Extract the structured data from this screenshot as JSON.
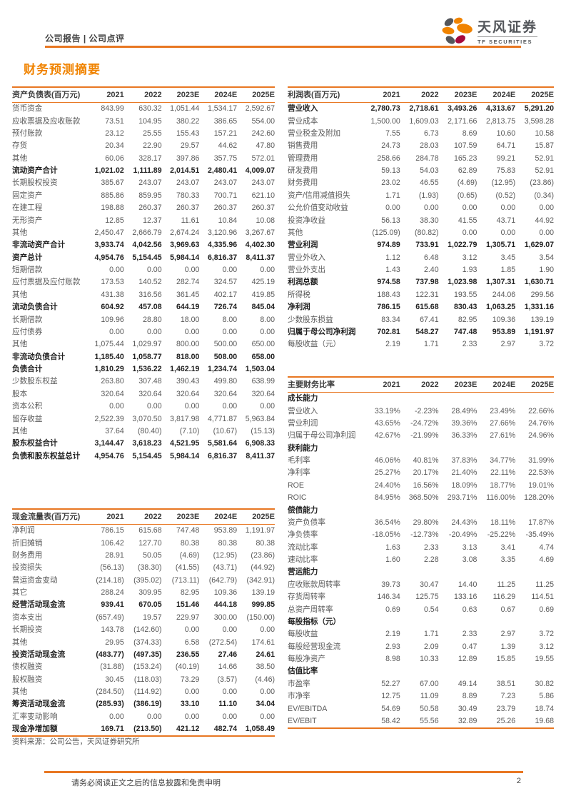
{
  "header": {
    "breadcrumb": "公司报告 | 公司点评",
    "logo": {
      "brand": "天风证券",
      "sub": "TF SECURITIES"
    },
    "accent_color": "#E87722",
    "logo_colors": {
      "orange": "#F08300",
      "gray": "#54565B",
      "crimson": "#A6093D"
    }
  },
  "page_title": "财务预测摘要",
  "columns": [
    "2021",
    "2022",
    "2023E",
    "2024E",
    "2025E"
  ],
  "tables": {
    "balance_sheet": {
      "title": "资产负债表(百万元)",
      "rows": [
        {
          "label": "货币资金",
          "values": [
            "843.99",
            "630.32",
            "1,051.44",
            "1,534.17",
            "2,592.67"
          ]
        },
        {
          "label": "应收票据及应收账款",
          "values": [
            "73.51",
            "104.95",
            "380.22",
            "386.65",
            "554.00"
          ]
        },
        {
          "label": "预付账款",
          "values": [
            "23.12",
            "25.55",
            "155.43",
            "157.21",
            "242.60"
          ]
        },
        {
          "label": "存货",
          "values": [
            "20.34",
            "22.90",
            "29.57",
            "44.62",
            "47.80"
          ]
        },
        {
          "label": "其他",
          "values": [
            "60.06",
            "328.17",
            "397.86",
            "357.75",
            "572.01"
          ]
        },
        {
          "label": "流动资产合计",
          "style": "bold",
          "values": [
            "1,021.02",
            "1,111.89",
            "2,014.51",
            "2,480.41",
            "4,009.07"
          ]
        },
        {
          "label": "长期股权投资",
          "values": [
            "385.67",
            "243.07",
            "243.07",
            "243.07",
            "243.07"
          ]
        },
        {
          "label": "固定资产",
          "values": [
            "885.86",
            "859.95",
            "780.33",
            "700.71",
            "621.10"
          ]
        },
        {
          "label": "在建工程",
          "values": [
            "198.88",
            "260.37",
            "260.37",
            "260.37",
            "260.37"
          ]
        },
        {
          "label": "无形资产",
          "values": [
            "12.85",
            "12.37",
            "11.61",
            "10.84",
            "10.08"
          ]
        },
        {
          "label": "其他",
          "values": [
            "2,450.47",
            "2,666.79",
            "2,674.24",
            "3,120.96",
            "3,267.67"
          ]
        },
        {
          "label": "非流动资产合计",
          "style": "bold",
          "values": [
            "3,933.74",
            "4,042.56",
            "3,969.63",
            "4,335.96",
            "4,402.30"
          ]
        },
        {
          "label": "资产总计",
          "style": "bold",
          "values": [
            "4,954.76",
            "5,154.45",
            "5,984.14",
            "6,816.37",
            "8,411.37"
          ]
        },
        {
          "label": "短期借款",
          "values": [
            "0.00",
            "0.00",
            "0.00",
            "0.00",
            "0.00"
          ]
        },
        {
          "label": "应付票据及应付账款",
          "values": [
            "173.53",
            "140.52",
            "282.74",
            "324.57",
            "425.19"
          ]
        },
        {
          "label": "其他",
          "values": [
            "431.38",
            "316.56",
            "361.45",
            "402.17",
            "419.85"
          ]
        },
        {
          "label": "流动负债合计",
          "style": "bold",
          "values": [
            "604.92",
            "457.08",
            "644.19",
            "726.74",
            "845.04"
          ]
        },
        {
          "label": "长期借款",
          "values": [
            "109.96",
            "28.80",
            "18.00",
            "8.00",
            "8.00"
          ]
        },
        {
          "label": "应付债券",
          "values": [
            "0.00",
            "0.00",
            "0.00",
            "0.00",
            "0.00"
          ]
        },
        {
          "label": "其他",
          "values": [
            "1,075.44",
            "1,029.97",
            "800.00",
            "500.00",
            "650.00"
          ]
        },
        {
          "label": "非流动负债合计",
          "style": "bold",
          "values": [
            "1,185.40",
            "1,058.77",
            "818.00",
            "508.00",
            "658.00"
          ]
        },
        {
          "label": "负债合计",
          "style": "bold",
          "values": [
            "1,810.29",
            "1,536.22",
            "1,462.19",
            "1,234.74",
            "1,503.04"
          ]
        },
        {
          "label": "少数股东权益",
          "values": [
            "263.80",
            "307.48",
            "390.43",
            "499.80",
            "638.99"
          ]
        },
        {
          "label": "股本",
          "values": [
            "320.64",
            "320.64",
            "320.64",
            "320.64",
            "320.64"
          ]
        },
        {
          "label": "资本公积",
          "values": [
            "0.00",
            "0.00",
            "0.00",
            "0.00",
            "0.00"
          ]
        },
        {
          "label": "留存收益",
          "values": [
            "2,522.39",
            "3,070.50",
            "3,817.98",
            "4,771.87",
            "5,963.84"
          ]
        },
        {
          "label": "其他",
          "values": [
            "37.64",
            "(80.40)",
            "(7.10)",
            "(10.67)",
            "(15.13)"
          ]
        },
        {
          "label": "股东权益合计",
          "style": "bold",
          "values": [
            "3,144.47",
            "3,618.23",
            "4,521.95",
            "5,581.64",
            "6,908.33"
          ]
        },
        {
          "label": "负债和股东权益总计",
          "style": "bold",
          "values": [
            "4,954.76",
            "5,154.45",
            "5,984.14",
            "6,816.37",
            "8,411.37"
          ]
        }
      ]
    },
    "income_statement": {
      "title": "利润表(百万元)",
      "rows": [
        {
          "label": "营业收入",
          "style": "bold",
          "values": [
            "2,780.73",
            "2,718.61",
            "3,493.26",
            "4,313.67",
            "5,291.20"
          ]
        },
        {
          "label": "营业成本",
          "values": [
            "1,500.00",
            "1,609.03",
            "2,171.66",
            "2,813.75",
            "3,598.28"
          ]
        },
        {
          "label": "营业税金及附加",
          "values": [
            "7.55",
            "6.73",
            "8.69",
            "10.60",
            "10.58"
          ]
        },
        {
          "label": "销售费用",
          "values": [
            "24.73",
            "28.03",
            "107.59",
            "64.71",
            "15.87"
          ]
        },
        {
          "label": "管理费用",
          "values": [
            "258.66",
            "284.78",
            "165.23",
            "99.21",
            "52.91"
          ]
        },
        {
          "label": "研发费用",
          "values": [
            "59.13",
            "54.03",
            "62.89",
            "75.83",
            "52.91"
          ]
        },
        {
          "label": "财务费用",
          "values": [
            "23.02",
            "46.55",
            "(4.69)",
            "(12.95)",
            "(23.86)"
          ]
        },
        {
          "label": "资产/信用减值损失",
          "values": [
            "1.71",
            "(1.93)",
            "(0.65)",
            "(0.52)",
            "(0.34)"
          ]
        },
        {
          "label": "公允价值变动收益",
          "values": [
            "0.00",
            "0.00",
            "0.00",
            "0.00",
            "0.00"
          ]
        },
        {
          "label": "投资净收益",
          "values": [
            "56.13",
            "38.30",
            "41.55",
            "43.71",
            "44.92"
          ]
        },
        {
          "label": "其他",
          "values": [
            "(125.09)",
            "(80.82)",
            "0.00",
            "0.00",
            "0.00"
          ]
        },
        {
          "label": "营业利润",
          "style": "bold",
          "values": [
            "974.89",
            "733.91",
            "1,022.79",
            "1,305.71",
            "1,629.07"
          ]
        },
        {
          "label": "营业外收入",
          "values": [
            "1.12",
            "6.48",
            "3.12",
            "3.45",
            "3.54"
          ]
        },
        {
          "label": "营业外支出",
          "values": [
            "1.43",
            "2.40",
            "1.93",
            "1.85",
            "1.90"
          ]
        },
        {
          "label": "利润总额",
          "style": "bold",
          "values": [
            "974.58",
            "737.98",
            "1,023.98",
            "1,307.31",
            "1,630.71"
          ]
        },
        {
          "label": "所得税",
          "values": [
            "188.43",
            "122.31",
            "193.55",
            "244.06",
            "299.56"
          ]
        },
        {
          "label": "净利润",
          "style": "bold",
          "values": [
            "786.15",
            "615.68",
            "830.43",
            "1,063.25",
            "1,331.16"
          ]
        },
        {
          "label": "少数股东损益",
          "values": [
            "83.34",
            "67.41",
            "82.95",
            "109.36",
            "139.19"
          ]
        },
        {
          "label": "归属于母公司净利润",
          "style": "bold",
          "values": [
            "702.81",
            "548.27",
            "747.48",
            "953.89",
            "1,191.97"
          ]
        },
        {
          "label": "每股收益（元）",
          "values": [
            "2.19",
            "1.71",
            "2.33",
            "2.97",
            "3.72"
          ]
        }
      ]
    },
    "ratios": {
      "title": "主要财务比率",
      "rows": [
        {
          "label": "成长能力",
          "style": "section",
          "values": [
            "",
            "",
            "",
            "",
            ""
          ]
        },
        {
          "label": "营业收入",
          "values": [
            "33.19%",
            "-2.23%",
            "28.49%",
            "23.49%",
            "22.66%"
          ]
        },
        {
          "label": "营业利润",
          "values": [
            "43.65%",
            "-24.72%",
            "39.36%",
            "27.66%",
            "24.76%"
          ]
        },
        {
          "label": "归属于母公司净利润",
          "values": [
            "42.67%",
            "-21.99%",
            "36.33%",
            "27.61%",
            "24.96%"
          ]
        },
        {
          "label": "获利能力",
          "style": "section",
          "values": [
            "",
            "",
            "",
            "",
            ""
          ]
        },
        {
          "label": "毛利率",
          "values": [
            "46.06%",
            "40.81%",
            "37.83%",
            "34.77%",
            "31.99%"
          ]
        },
        {
          "label": "净利率",
          "values": [
            "25.27%",
            "20.17%",
            "21.40%",
            "22.11%",
            "22.53%"
          ]
        },
        {
          "label": "ROE",
          "values": [
            "24.40%",
            "16.56%",
            "18.09%",
            "18.77%",
            "19.01%"
          ]
        },
        {
          "label": "ROIC",
          "values": [
            "84.95%",
            "368.50%",
            "293.71%",
            "116.00%",
            "128.20%"
          ]
        },
        {
          "label": "偿债能力",
          "style": "section",
          "values": [
            "",
            "",
            "",
            "",
            ""
          ]
        },
        {
          "label": "资产负债率",
          "values": [
            "36.54%",
            "29.80%",
            "24.43%",
            "18.11%",
            "17.87%"
          ]
        },
        {
          "label": "净负债率",
          "values": [
            "-18.05%",
            "-12.73%",
            "-20.49%",
            "-25.22%",
            "-35.49%"
          ]
        },
        {
          "label": "流动比率",
          "values": [
            "1.63",
            "2.33",
            "3.13",
            "3.41",
            "4.74"
          ]
        },
        {
          "label": "速动比率",
          "values": [
            "1.60",
            "2.28",
            "3.08",
            "3.35",
            "4.69"
          ]
        },
        {
          "label": "营运能力",
          "style": "section",
          "values": [
            "",
            "",
            "",
            "",
            ""
          ]
        },
        {
          "label": "应收账款周转率",
          "values": [
            "39.73",
            "30.47",
            "14.40",
            "11.25",
            "11.25"
          ]
        },
        {
          "label": "存货周转率",
          "values": [
            "146.34",
            "125.75",
            "133.16",
            "116.29",
            "114.51"
          ]
        },
        {
          "label": "总资产周转率",
          "values": [
            "0.69",
            "0.54",
            "0.63",
            "0.67",
            "0.69"
          ]
        },
        {
          "label": "每股指标（元）",
          "style": "section",
          "values": [
            "",
            "",
            "",
            "",
            ""
          ]
        },
        {
          "label": "每股收益",
          "values": [
            "2.19",
            "1.71",
            "2.33",
            "2.97",
            "3.72"
          ]
        },
        {
          "label": "每股经营现金流",
          "values": [
            "2.93",
            "2.09",
            "0.47",
            "1.39",
            "3.12"
          ]
        },
        {
          "label": "每股净资产",
          "values": [
            "8.98",
            "10.33",
            "12.89",
            "15.85",
            "19.55"
          ]
        },
        {
          "label": "估值比率",
          "style": "section",
          "values": [
            "",
            "",
            "",
            "",
            ""
          ]
        },
        {
          "label": "市盈率",
          "values": [
            "52.27",
            "67.00",
            "49.14",
            "38.51",
            "30.82"
          ]
        },
        {
          "label": "市净率",
          "values": [
            "12.75",
            "11.09",
            "8.89",
            "7.23",
            "5.86"
          ]
        },
        {
          "label": "EV/EBITDA",
          "values": [
            "54.69",
            "50.58",
            "30.49",
            "23.79",
            "18.74"
          ]
        },
        {
          "label": "EV/EBIT",
          "values": [
            "58.42",
            "55.56",
            "32.89",
            "25.26",
            "19.68"
          ]
        }
      ]
    },
    "cash_flow": {
      "title": "现金流量表(百万元)",
      "rows": [
        {
          "label": "净利润",
          "values": [
            "786.15",
            "615.68",
            "747.48",
            "953.89",
            "1,191.97"
          ]
        },
        {
          "label": "折旧摊销",
          "values": [
            "106.42",
            "127.70",
            "80.38",
            "80.38",
            "80.38"
          ]
        },
        {
          "label": "财务费用",
          "values": [
            "28.91",
            "50.05",
            "(4.69)",
            "(12.95)",
            "(23.86)"
          ]
        },
        {
          "label": "投资损失",
          "values": [
            "(56.13)",
            "(38.30)",
            "(41.55)",
            "(43.71)",
            "(44.92)"
          ]
        },
        {
          "label": "营运资金变动",
          "values": [
            "(214.18)",
            "(395.02)",
            "(713.11)",
            "(642.79)",
            "(342.91)"
          ]
        },
        {
          "label": "其它",
          "values": [
            "288.24",
            "309.95",
            "82.95",
            "109.36",
            "139.19"
          ]
        },
        {
          "label": "经营活动现金流",
          "style": "bold",
          "values": [
            "939.41",
            "670.05",
            "151.46",
            "444.18",
            "999.85"
          ]
        },
        {
          "label": "资本支出",
          "values": [
            "(657.49)",
            "19.57",
            "229.97",
            "300.00",
            "(150.00)"
          ]
        },
        {
          "label": "长期投资",
          "values": [
            "143.78",
            "(142.60)",
            "0.00",
            "0.00",
            "0.00"
          ]
        },
        {
          "label": "其他",
          "values": [
            "29.95",
            "(374.33)",
            "6.58",
            "(272.54)",
            "174.61"
          ]
        },
        {
          "label": "投资活动现金流",
          "style": "bold",
          "values": [
            "(483.77)",
            "(497.35)",
            "236.55",
            "27.46",
            "24.61"
          ]
        },
        {
          "label": "债权融资",
          "values": [
            "(31.88)",
            "(153.24)",
            "(40.19)",
            "14.66",
            "38.50"
          ]
        },
        {
          "label": "股权融资",
          "values": [
            "30.45",
            "(118.03)",
            "73.29",
            "(3.57)",
            "(4.46)"
          ]
        },
        {
          "label": "其他",
          "values": [
            "(284.50)",
            "(114.92)",
            "0.00",
            "0.00",
            "0.00"
          ]
        },
        {
          "label": "筹资活动现金流",
          "style": "bold",
          "values": [
            "(285.93)",
            "(386.19)",
            "33.10",
            "11.10",
            "34.04"
          ]
        },
        {
          "label": "汇率变动影响",
          "values": [
            "0.00",
            "0.00",
            "0.00",
            "0.00",
            "0.00"
          ]
        },
        {
          "label": "现金净增加额",
          "style": "bold",
          "values": [
            "169.71",
            "(213.50)",
            "421.12",
            "482.74",
            "1,058.49"
          ]
        }
      ]
    }
  },
  "source_note": "资料来源：公司公告，天风证券研究所",
  "footer": {
    "disclaimer": "请务必阅读正文之后的信息披露和免责申明",
    "page_number": "2"
  }
}
